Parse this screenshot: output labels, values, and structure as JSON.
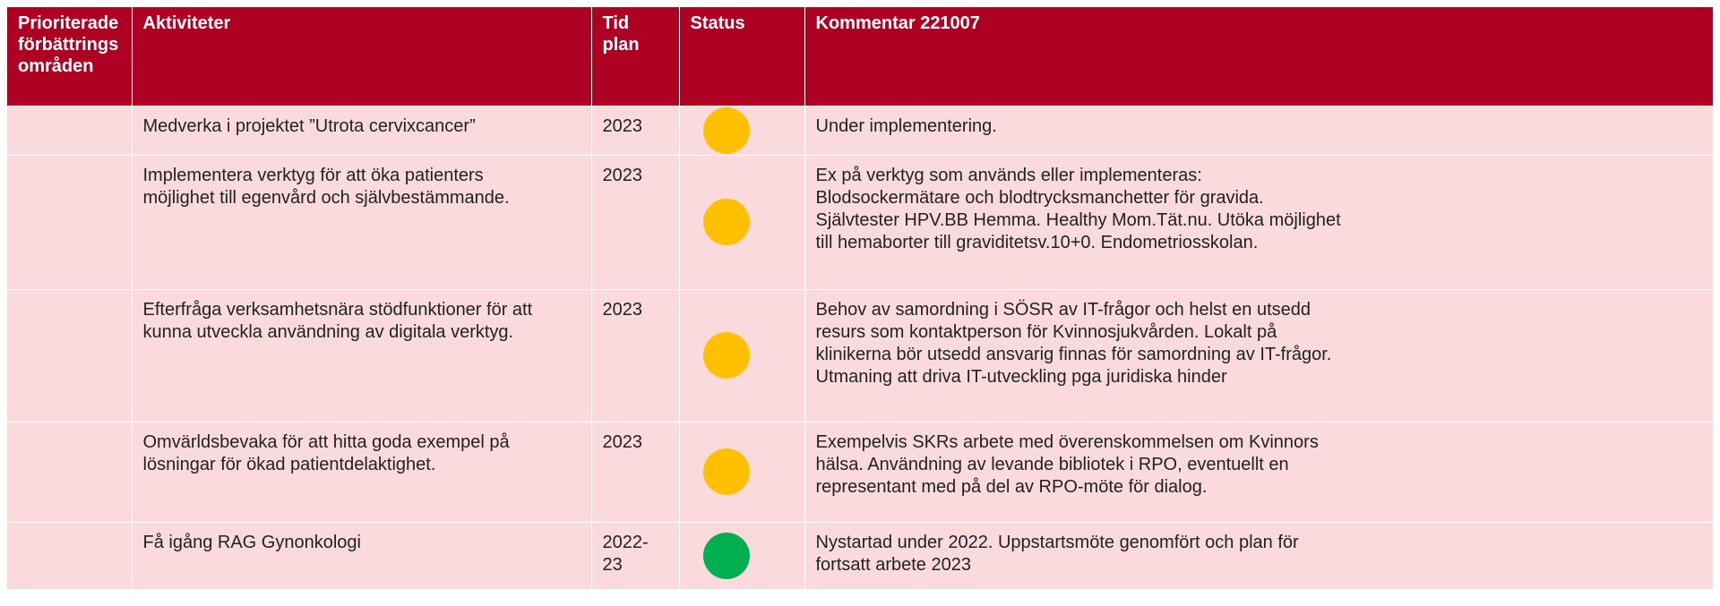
{
  "table": {
    "header": [
      [
        "Prioriterade",
        "förbättrings",
        "områden"
      ],
      [
        "Aktiviteter"
      ],
      [
        "Tid",
        "plan"
      ],
      [
        "Status"
      ],
      [
        "Kommentar 221007"
      ]
    ],
    "rows": [
      {
        "area": [],
        "activity": [
          "Medverka i projektet ”Utrota cervixcancer”"
        ],
        "time": [
          "2023"
        ],
        "status_color": "#ffc000",
        "comment": [
          "Under implementering."
        ]
      },
      {
        "area": [],
        "activity": [
          "Implementera verktyg för att öka patienters",
          "möjlighet till egenvård och självbestämmande."
        ],
        "time": [
          "2023"
        ],
        "status_color": "#ffc000",
        "comment": [
          "Ex på verktyg som används eller implementeras:",
          "Blodsockermätare och blodtrycksmanchetter för gravida.",
          "Självtester HPV.BB Hemma. Healthy Mom.Tät.nu. Utöka möjlighet",
          "till hemaborter till graviditetsv.10+0. Endometriosskolan."
        ]
      },
      {
        "area": [],
        "activity": [
          "Efterfråga verksamhetsnära stödfunktioner för att",
          "kunna utveckla användning av digitala verktyg."
        ],
        "time": [
          "2023"
        ],
        "status_color": "#ffc000",
        "comment": [
          "Behov av samordning i SÖSR av IT-frågor och helst en utsedd",
          "resurs som kontaktperson för Kvinnosjukvården. Lokalt på",
          "klinikerna bör utsedd ansvarig finnas för samordning av IT-frågor.",
          "Utmaning att driva IT-utveckling pga juridiska hinder"
        ]
      },
      {
        "area": [],
        "activity": [
          "Omvärldsbevaka för att hitta goda exempel på",
          "lösningar för ökad patientdelaktighet."
        ],
        "time": [
          "2023"
        ],
        "status_color": "#ffc000",
        "comment": [
          "Exempelvis SKRs arbete med överenskommelsen om Kvinnors",
          "hälsa. Användning av levande bibliotek i RPO, eventuellt en",
          "representant med på del av RPO-möte för dialog."
        ]
      },
      {
        "area": [],
        "activity": [
          "Få igång RAG Gynonkologi"
        ],
        "time": [
          "2022-",
          "23"
        ],
        "status_color": "#00b050",
        "comment": [
          "Nystartad under 2022. Uppstartsmöte genomfört och plan för",
          "fortsatt arbete 2023"
        ]
      }
    ]
  }
}
